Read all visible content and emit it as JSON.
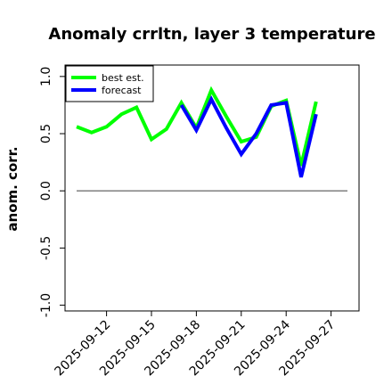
{
  "chart_data": {
    "type": "line",
    "title": "Anomaly crrltn, layer 3 temperature",
    "xlabel": "",
    "ylabel": "anom. corr.",
    "ylim": [
      -1.05,
      1.1
    ],
    "yticks": [
      "1.0",
      "0.5",
      "0.0",
      "-0.5",
      "-1.0"
    ],
    "ytick_values": [
      1.0,
      0.5,
      0.0,
      -0.5,
      -1.0
    ],
    "xticks": [
      "2025-09-12",
      "2025-09-15",
      "2025-09-18",
      "2025-09-21",
      "2025-09-24",
      "2025-09-27"
    ],
    "highlighted_xtick": "2025-09-18",
    "highlight_color": "#1a8a1a",
    "zero_line": true,
    "legend_position": "top-left",
    "x": [
      "2025-09-10",
      "2025-09-11",
      "2025-09-12",
      "2025-09-13",
      "2025-09-14",
      "2025-09-15",
      "2025-09-16",
      "2025-09-17",
      "2025-09-18",
      "2025-09-19",
      "2025-09-20",
      "2025-09-21",
      "2025-09-22",
      "2025-09-23",
      "2025-09-24",
      "2025-09-25",
      "2025-09-26",
      "2025-09-27"
    ],
    "series": [
      {
        "name": "best est.",
        "color": "#00ff00",
        "values": [
          0.56,
          0.51,
          0.56,
          0.67,
          0.73,
          0.45,
          0.54,
          0.77,
          0.55,
          0.88,
          0.65,
          0.43,
          0.47,
          0.74,
          0.79,
          0.22,
          0.78,
          null
        ]
      },
      {
        "name": "forecast",
        "color": "#0000ff",
        "values": [
          null,
          null,
          null,
          null,
          null,
          null,
          null,
          0.75,
          0.53,
          0.8,
          0.55,
          0.32,
          0.5,
          0.75,
          0.77,
          0.12,
          0.67,
          null
        ]
      }
    ]
  }
}
